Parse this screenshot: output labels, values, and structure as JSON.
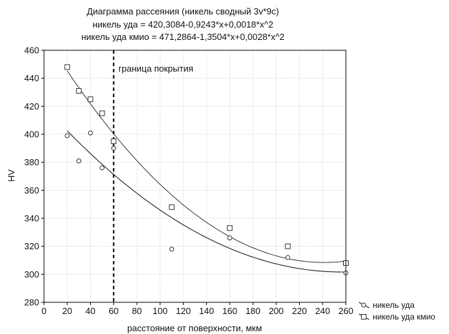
{
  "chart_data": {
    "type": "scatter",
    "title": "Диаграмма рассеяния (никель сводный 3v*9c)",
    "subtitle_lines": [
      "никель уда = 420,3084-0,9243*x+0,0018*x^2",
      "никель уда кмио = 471,2864-1,3504*x+0,0028*x^2"
    ],
    "xlabel": "расстояние от поверхности, мкм",
    "ylabel": "HV",
    "xlim": [
      0,
      260
    ],
    "ylim": [
      280,
      460
    ],
    "x_ticks": [
      "0",
      "20",
      "40",
      "60",
      "80",
      "100",
      "120",
      "140",
      "160",
      "180",
      "200",
      "220",
      "240",
      "260"
    ],
    "y_ticks": [
      "280",
      "300",
      "320",
      "340",
      "360",
      "380",
      "400",
      "420",
      "440",
      "460"
    ],
    "grid": true,
    "legend_position": "bottom-right, outside plot",
    "annotation": {
      "text": "граница покрытия",
      "x": 60
    },
    "series": [
      {
        "name": "никель уда",
        "marker": "circle",
        "fit": [
          420.3084,
          -0.9243,
          0.0018
        ],
        "points": [
          [
            20,
            399
          ],
          [
            30,
            381
          ],
          [
            40,
            401
          ],
          [
            50,
            376
          ],
          [
            60,
            390
          ],
          [
            110,
            318
          ],
          [
            160,
            326
          ],
          [
            210,
            312
          ],
          [
            260,
            301
          ]
        ]
      },
      {
        "name": "никель уда кмио",
        "marker": "square",
        "fit": [
          471.2864,
          -1.3504,
          0.0028
        ],
        "points": [
          [
            20,
            448
          ],
          [
            30,
            431
          ],
          [
            40,
            425
          ],
          [
            50,
            415
          ],
          [
            60,
            395
          ],
          [
            110,
            348
          ],
          [
            160,
            333
          ],
          [
            210,
            320
          ],
          [
            260,
            308
          ]
        ]
      }
    ]
  },
  "colors": {
    "axis": "#000000",
    "grid": "#c8c8c8",
    "marker": "#333333",
    "line": "#222222"
  }
}
